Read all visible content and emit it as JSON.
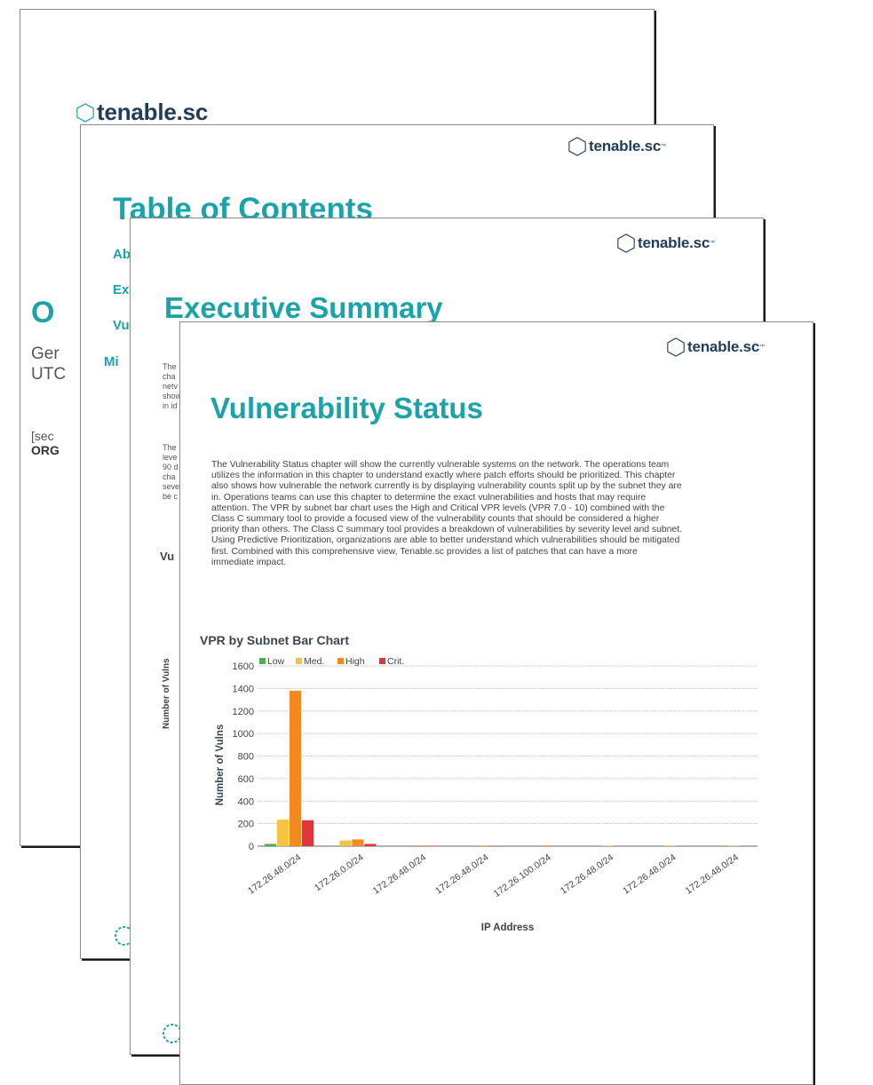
{
  "brand": {
    "logo_text": "tenable.sc",
    "tm": "™"
  },
  "colors": {
    "accent": "#1aa3a8",
    "logo": "#1f3c5a",
    "low": "#4caf50",
    "med": "#f5c242",
    "high": "#f28a1f",
    "crit": "#e0353a"
  },
  "page1": {
    "title_fragment": "O",
    "line1": "Ger",
    "line2": "UTC",
    "section_fragment": "[sec",
    "org_fragment": "ORG"
  },
  "page2": {
    "title": "Table of Contents",
    "toc": [
      "Ab",
      "Ex",
      "Vu",
      "Mi"
    ]
  },
  "page3": {
    "title": "Executive Summary",
    "para1_lines": [
      "The",
      "cha",
      "netv",
      "show",
      "in id"
    ],
    "para2_lines": [
      "The",
      "leve",
      "90 d",
      "cha",
      "seve",
      "be c"
    ],
    "chart_fragment": "Vu",
    "ylabel": "Number of Vulns"
  },
  "page4": {
    "title": "Vulnerability Status",
    "body": "The Vulnerability Status chapter will show the currently vulnerable systems on the network. The operations team utilizes the information in this chapter to understand exactly where patch efforts should be prioritized. This chapter also shows how vulnerable the network currently is by displaying vulnerability counts split up by the subnet they are in. Operations teams can use this chapter to determine the exact vulnerabilities and hosts that may require attention. The VPR by subnet bar chart uses the High and Critical VPR levels (VPR 7.0 - 10) combined with the Class C summary tool to provide a focused view of the vulnerability counts that should be considered a higher priority than others. The Class C summary tool provides a breakdown of vulnerabilities by severity level and subnet. Using Predictive Prioritization, organizations are able to better understand which vulnerabilities should be mitigated first. Combined with this comprehensive view, Tenable.sc provides a list of patches that can have a more immediate impact.",
    "chart_heading": "VPR by Subnet Bar Chart"
  },
  "chart_data": {
    "type": "bar",
    "title": "VPR by Subnet Bar Chart",
    "xlabel": "IP Address",
    "ylabel": "Number of Vulns",
    "ylim": [
      0,
      1600
    ],
    "yticks": [
      0,
      200,
      400,
      600,
      800,
      1000,
      1200,
      1400,
      1600
    ],
    "grid": true,
    "legend_position": "top-left",
    "categories": [
      "172.26.48.0/24",
      "172.26.0.0/24",
      "172.26.48.0/24",
      "172.26.48.0/24",
      "172.26.100.0/24",
      "172.26.48.0/24",
      "172.26.48.0/24",
      "172.26.48.0/24"
    ],
    "series": [
      {
        "name": "Low",
        "color": "#4caf50",
        "values": [
          20,
          0,
          0,
          0,
          0,
          0,
          0,
          0
        ]
      },
      {
        "name": "Med.",
        "color": "#f5c242",
        "values": [
          235,
          50,
          0,
          0,
          0,
          0,
          0,
          0
        ]
      },
      {
        "name": "High",
        "color": "#f28a1f",
        "values": [
          1380,
          60,
          6,
          5,
          6,
          4,
          4,
          4
        ]
      },
      {
        "name": "Crit.",
        "color": "#e0353a",
        "values": [
          230,
          20,
          4,
          3,
          0,
          0,
          0,
          0
        ]
      }
    ]
  }
}
